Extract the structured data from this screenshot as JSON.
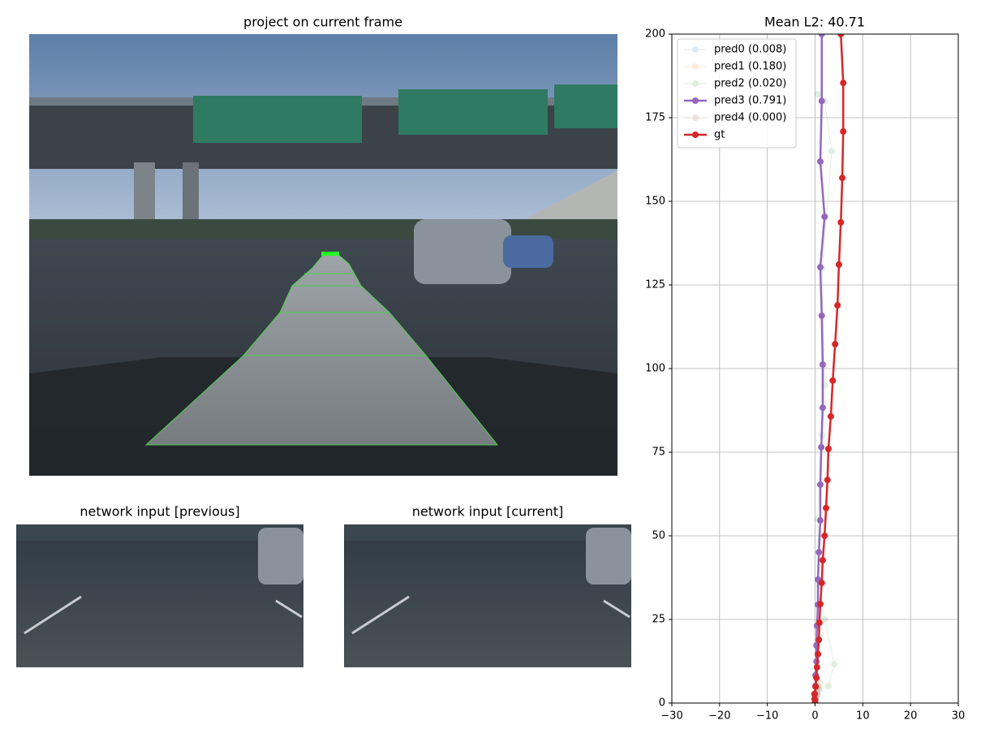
{
  "images": [
    {
      "title": "project on current frame"
    },
    {
      "title": "network input [previous]"
    },
    {
      "title": "network input [current]"
    }
  ],
  "chart_data": {
    "type": "line",
    "title": "Mean L2: 40.71",
    "xlim": [
      -30,
      30
    ],
    "xticks": [
      {
        "value": -30,
        "label": "−30"
      },
      {
        "value": -20,
        "label": "−20"
      },
      {
        "value": -10,
        "label": "−10"
      },
      0,
      10,
      20,
      30
    ],
    "ylim": [
      0,
      200
    ],
    "yticks": [
      0,
      25,
      50,
      75,
      100,
      125,
      150,
      175,
      200
    ],
    "grid": true,
    "legend": "upper left",
    "series": [
      {
        "name": "pred0 (0.008)",
        "color": "#1f77b4",
        "alpha": 0.15,
        "x": [
          0,
          0.1,
          0.2,
          0.3,
          0.4
        ],
        "values": [
          0,
          1,
          2,
          3,
          4.5
        ]
      },
      {
        "name": "pred1 (0.180)",
        "color": "#ff7f0e",
        "alpha": 0.15,
        "x": [
          0,
          0.2,
          0.5,
          0.8,
          1.0
        ],
        "values": [
          0,
          1.5,
          3,
          4.5,
          6
        ]
      },
      {
        "name": "pred2 (0.020)",
        "color": "#2ca02c",
        "alpha": 0.15,
        "x": [
          0,
          0.5,
          2.8,
          4.0,
          2.0,
          1.0,
          0.5,
          1.5,
          2.0,
          1.5,
          3.5,
          2.0,
          0.5
        ],
        "values": [
          0,
          5,
          5,
          11.6,
          25,
          35,
          55,
          80,
          95,
          130,
          165,
          180,
          182
        ]
      },
      {
        "name": "pred3 (0.791)",
        "color": "#9467bd",
        "alpha": 1,
        "x": [
          0,
          0,
          -0.1,
          0.1,
          0.1,
          0.3,
          0.3,
          0.4,
          0.6,
          0.6,
          0.8,
          1.1,
          1.1,
          1.3,
          1.6,
          1.6,
          1.4,
          1.1,
          2.0,
          1.1,
          1.4,
          1.4
        ],
        "values": [
          0,
          1,
          2.7,
          5.1,
          8.3,
          12.4,
          17.2,
          23.1,
          29.4,
          36.9,
          45.1,
          54.6,
          65.3,
          76.5,
          88.3,
          101.2,
          115.8,
          130.3,
          145.4,
          161.9,
          180,
          200
        ]
      },
      {
        "name": "pred4 (0.000)",
        "color": "#8c564b",
        "alpha": 0.15,
        "x": [
          0,
          0.3,
          0.6,
          0.9
        ],
        "values": [
          0,
          1.2,
          2.5,
          4
        ]
      },
      {
        "name": "gt",
        "color": "#d62728",
        "alpha": 1,
        "x": [
          0,
          -0.1,
          -0.1,
          0.1,
          0.3,
          0.4,
          0.6,
          0.8,
          0.9,
          1.1,
          1.4,
          1.6,
          2.0,
          2.3,
          2.6,
          2.8,
          3.3,
          3.7,
          4.2,
          4.7,
          5.0,
          5.4,
          5.7,
          5.9,
          5.9,
          5.4
        ],
        "values": [
          0.2,
          1.2,
          2.7,
          4.9,
          7.5,
          10.7,
          14.6,
          18.9,
          24,
          29.6,
          35.9,
          42.7,
          50,
          58.3,
          66.7,
          76,
          85.7,
          96.4,
          107.3,
          118.9,
          131.1,
          143.7,
          157,
          170.9,
          185.4,
          200
        ]
      }
    ]
  }
}
